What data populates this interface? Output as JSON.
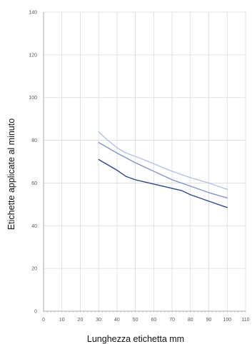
{
  "chart_data": {
    "type": "line",
    "title": "",
    "xlabel": "Lunghezza etichetta mm",
    "ylabel": "Etichette applicate al minuto",
    "xlim": [
      0,
      110
    ],
    "ylim": [
      0,
      140
    ],
    "x_ticks": [
      0,
      10,
      20,
      30,
      40,
      50,
      60,
      70,
      80,
      90,
      100,
      110
    ],
    "y_ticks": [
      0,
      20,
      40,
      60,
      80,
      100,
      120,
      140
    ],
    "grid": true,
    "series": [
      {
        "color": "#b4c1e4",
        "x": [
          30,
          35,
          40,
          45,
          50,
          60,
          70,
          80,
          90,
          100
        ],
        "y": [
          84,
          80,
          76.5,
          74,
          72.5,
          69,
          65.5,
          62.5,
          60,
          57
        ]
      },
      {
        "color": "#8293cc",
        "x": [
          30,
          40,
          50,
          60,
          70,
          80,
          90,
          100
        ],
        "y": [
          79,
          74,
          69.5,
          65.5,
          61.5,
          58.5,
          55.5,
          53
        ]
      },
      {
        "color": "#2f4785",
        "x": [
          30,
          35,
          40,
          45,
          50,
          60,
          70,
          75,
          80,
          90,
          100
        ],
        "y": [
          71,
          68.5,
          66,
          63,
          61.5,
          59.5,
          57.5,
          56.5,
          54.5,
          51.5,
          48.5
        ]
      }
    ]
  }
}
